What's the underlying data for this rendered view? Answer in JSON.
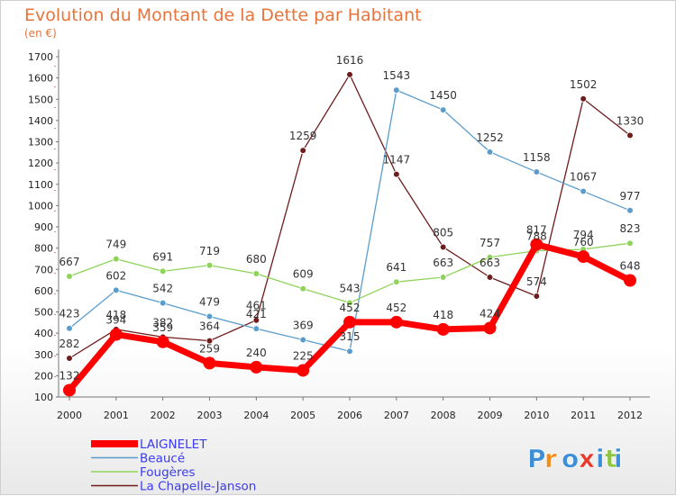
{
  "chart_data": {
    "type": "line",
    "title": "Evolution du Montant de la Dette par Habitant",
    "subtitle": "(en €)",
    "x": [
      "2000",
      "2001",
      "2002",
      "2003",
      "2004",
      "2005",
      "2006",
      "2007",
      "2008",
      "2009",
      "2010",
      "2011",
      "2012"
    ],
    "ylim": [
      100,
      1700
    ],
    "yticks": [
      100,
      200,
      300,
      400,
      500,
      600,
      700,
      800,
      900,
      1000,
      1100,
      1200,
      1300,
      1400,
      1500,
      1600,
      1700
    ],
    "grid": false,
    "legend_position": "bottom-left",
    "series": [
      {
        "name": "LAIGNELET",
        "color": "#ff0000",
        "values": [
          132,
          394,
          359,
          259,
          240,
          225,
          452,
          452,
          418,
          424,
          817,
          760,
          648
        ]
      },
      {
        "name": "Beaucé",
        "color": "#5a9ccc",
        "values": [
          423,
          602,
          542,
          479,
          421,
          369,
          315,
          1543,
          1450,
          1252,
          1158,
          1067,
          977
        ]
      },
      {
        "name": "Fougères",
        "color": "#8fd45a",
        "values": [
          667,
          749,
          691,
          719,
          680,
          609,
          543,
          641,
          663,
          757,
          788,
          794,
          823
        ]
      },
      {
        "name": "La Chapelle-Janson",
        "color": "#6e1c1c",
        "values": [
          282,
          418,
          382,
          364,
          461,
          1259,
          1616,
          1147,
          805,
          663,
          574,
          1502,
          1330
        ]
      }
    ]
  },
  "brand": {
    "logo_text": "Proxiti",
    "colors": [
      "#3c8fd6",
      "#f08c1e",
      "#3c8fd6",
      "#e63c2e",
      "#3c8fd6",
      "#8cc63f",
      "#3c8fd6"
    ]
  }
}
